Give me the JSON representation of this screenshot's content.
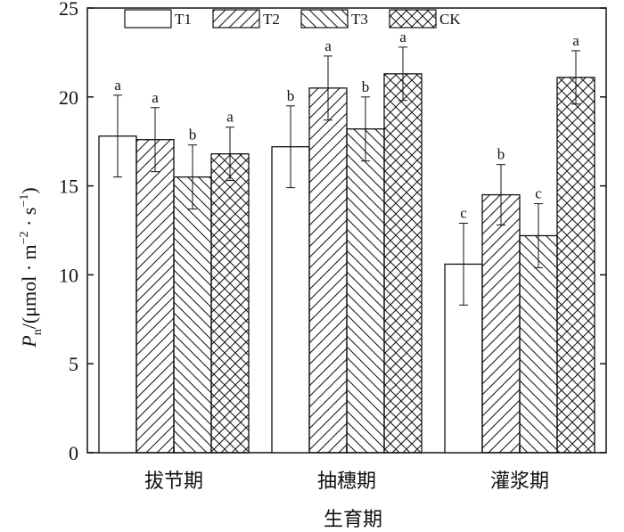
{
  "chart_data": {
    "type": "bar",
    "title": "",
    "categories": [
      "拔节期",
      "抽穗期",
      "灌浆期"
    ],
    "xlabel": "生育期",
    "ylabel": {
      "symbol": "P",
      "subscript": "n",
      "unit_prefix": "/(μmol · m",
      "exp1": "−2",
      "unit_mid": " · s",
      "exp2": "−1",
      "unit_suffix": ")"
    },
    "ylim": [
      0,
      25
    ],
    "yticks": [
      0,
      5,
      10,
      15,
      20,
      25
    ],
    "legend_position": "top",
    "series": [
      {
        "name": "T1",
        "pattern": "none",
        "values": [
          17.8,
          17.2,
          10.6
        ],
        "errors": [
          2.3,
          2.3,
          2.3
        ],
        "sig": [
          "a",
          "b",
          "c"
        ]
      },
      {
        "name": "T2",
        "pattern": "diag-fwd",
        "values": [
          17.6,
          20.5,
          14.5
        ],
        "errors": [
          1.8,
          1.8,
          1.7
        ],
        "sig": [
          "a",
          "a",
          "b"
        ]
      },
      {
        "name": "T3",
        "pattern": "diag-back",
        "values": [
          15.5,
          18.2,
          12.2
        ],
        "errors": [
          1.8,
          1.8,
          1.8
        ],
        "sig": [
          "b",
          "b",
          "c"
        ]
      },
      {
        "name": "CK",
        "pattern": "cross",
        "values": [
          16.8,
          21.3,
          21.1
        ],
        "errors": [
          1.5,
          1.5,
          1.5
        ],
        "sig": [
          "a",
          "a",
          "a"
        ]
      }
    ]
  }
}
